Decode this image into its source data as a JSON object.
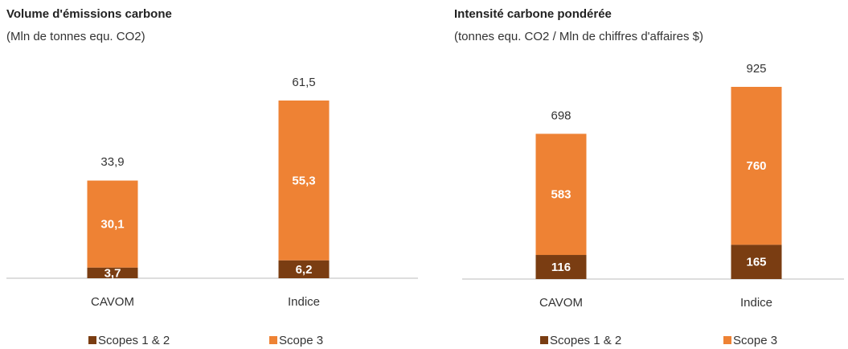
{
  "chart_data": [
    {
      "type": "stacked_bar",
      "title": "Volume d'émissions carbone",
      "subtitle": "(Mln de tonnes equ. CO2)",
      "categories": [
        "CAVOM",
        "Indice"
      ],
      "series": [
        {
          "name": "Scopes 1 & 2",
          "color": "#7a3d12",
          "values": [
            3.7,
            6.2
          ],
          "value_labels": [
            "3,7",
            "6,2"
          ]
        },
        {
          "name": "Scope 3",
          "color": "#ee8234",
          "values": [
            30.1,
            55.3
          ],
          "value_labels": [
            "30,1",
            "55,3"
          ]
        }
      ],
      "totals": [
        33.9,
        61.5
      ],
      "total_labels": [
        "33,9",
        "61,5"
      ]
    },
    {
      "type": "stacked_bar",
      "title": "Intensité carbone pondérée",
      "subtitle": "(tonnes equ. CO2 / Mln de chiffres d'affaires $)",
      "categories": [
        "CAVOM",
        "Indice"
      ],
      "series": [
        {
          "name": "Scopes 1 & 2",
          "color": "#7a3d12",
          "values": [
            116,
            165
          ]
        },
        {
          "name": "Scope 3",
          "color": "#ee8234",
          "values": [
            583,
            760
          ]
        }
      ],
      "totals": [
        698,
        925
      ]
    }
  ]
}
